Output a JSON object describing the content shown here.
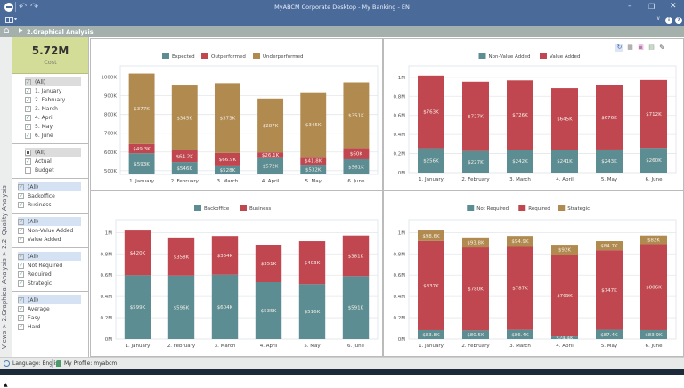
{
  "window": {
    "title": "MyABCM Corporate Desktop - My Banking - EN",
    "icons": [
      "app-logo-icon",
      "undo-icon",
      "redo-icon",
      "minimize-icon",
      "restore-icon",
      "close-icon",
      "layout-icon",
      "chevron-down-icon",
      "info-icon",
      "help-icon"
    ]
  },
  "breadcrumb": {
    "home_icon": "home-icon",
    "current": "2.Graphical Analysis"
  },
  "side_nav": {
    "path": "Views > 2.Graphical Analysis > 2.2. Quality Analysis"
  },
  "kpi": {
    "value": "5.72M",
    "label": "Cost"
  },
  "filters": [
    {
      "items": [
        {
          "label": "(All)",
          "state": "checked",
          "all": true
        },
        {
          "label": "1. January",
          "state": "checked"
        },
        {
          "label": "2. February",
          "state": "checked"
        },
        {
          "label": "3. March",
          "state": "checked"
        },
        {
          "label": "4. April",
          "state": "checked"
        },
        {
          "label": "5. May",
          "state": "checked"
        },
        {
          "label": "6. June",
          "state": "checked"
        }
      ]
    },
    {
      "items": [
        {
          "label": "(All)",
          "state": "partial",
          "all": true
        },
        {
          "label": "Actual",
          "state": "checked"
        },
        {
          "label": "Budget",
          "state": "unchecked"
        }
      ]
    },
    {
      "items": [
        {
          "label": "(All)",
          "state": "checked",
          "all": true
        },
        {
          "label": "Backoffice",
          "state": "checked"
        },
        {
          "label": "Business",
          "state": "checked"
        }
      ]
    },
    {
      "items": [
        {
          "label": "(All)",
          "state": "checked",
          "all": true
        },
        {
          "label": "Non-Value Added",
          "state": "checked"
        },
        {
          "label": "Value Added",
          "state": "checked"
        }
      ]
    },
    {
      "items": [
        {
          "label": "(All)",
          "state": "checked",
          "all": true
        },
        {
          "label": "Not Required",
          "state": "checked"
        },
        {
          "label": "Required",
          "state": "checked"
        },
        {
          "label": "Strategic",
          "state": "checked"
        }
      ]
    },
    {
      "items": [
        {
          "label": "(All)",
          "state": "checked",
          "all": true
        },
        {
          "label": "Average",
          "state": "checked"
        },
        {
          "label": "Easy",
          "state": "checked"
        },
        {
          "label": "Hard",
          "state": "checked"
        }
      ]
    }
  ],
  "chart_toolbar": {
    "icons": [
      "refresh-icon",
      "grid-icon",
      "save-icon",
      "export-icon",
      "edit-icon"
    ]
  },
  "status": {
    "language": "Language: English",
    "profile": "My Profile: myabcm"
  },
  "colors": {
    "teal": "#5b8d93",
    "red": "#c0464f",
    "gold": "#b08a4f"
  },
  "chart_data": [
    {
      "type": "bar",
      "stacked": true,
      "title": "",
      "categories": [
        "1. January",
        "2. February",
        "3. March",
        "4. April",
        "5. May",
        "6. June"
      ],
      "series": [
        {
          "name": "Expected",
          "color": "#5b8d93",
          "values": [
            593,
            546,
            528,
            572,
            532,
            561
          ],
          "labels": [
            "$593K",
            "$546K",
            "$528K",
            "$572K",
            "$532K",
            "$561K"
          ]
        },
        {
          "name": "Outperformed",
          "color": "#c0464f",
          "values": [
            49.3,
            64.2,
            66.9,
            26.1,
            41.8,
            60
          ],
          "labels": [
            "$49.3K",
            "$64.2K",
            "$66.9K",
            "$26.1K",
            "$41.8K",
            "$60K"
          ]
        },
        {
          "name": "Underperformed",
          "color": "#b08a4f",
          "values": [
            377,
            345,
            373,
            287,
            345,
            351
          ],
          "labels": [
            "$377K",
            "$345K",
            "$373K",
            "$287K",
            "$345K",
            "$351K"
          ]
        }
      ],
      "ylim": [
        480,
        1060
      ],
      "yticks": [
        500,
        600,
        700,
        800,
        900,
        1000
      ],
      "ytick_labels": [
        "500K",
        "600K",
        "700K",
        "800K",
        "900K",
        "1000K"
      ],
      "legend": "top-center",
      "grid": true
    },
    {
      "type": "bar",
      "stacked": true,
      "categories": [
        "1. January",
        "2. February",
        "3. March",
        "4. April",
        "5. May",
        "6. June"
      ],
      "series": [
        {
          "name": "Non-Value Added",
          "color": "#5b8d93",
          "values": [
            256,
            227,
            242,
            241,
            243,
            260
          ],
          "labels": [
            "$256K",
            "$227K",
            "$242K",
            "$241K",
            "$243K",
            "$260K"
          ]
        },
        {
          "name": "Value Added",
          "color": "#c0464f",
          "values": [
            763,
            727,
            726,
            645,
            676,
            712
          ],
          "labels": [
            "$763K",
            "$727K",
            "$726K",
            "$645K",
            "$676K",
            "$712K"
          ]
        }
      ],
      "ylim": [
        0,
        1120
      ],
      "yticks": [
        0,
        200,
        400,
        600,
        800,
        1000
      ],
      "ytick_labels": [
        "0M",
        "0.2M",
        "0.4M",
        "0.6M",
        "0.8M",
        "1M"
      ],
      "legend": "top-center",
      "grid": true
    },
    {
      "type": "bar",
      "stacked": true,
      "categories": [
        "1. January",
        "2. February",
        "3. March",
        "4. April",
        "5. May",
        "6. June"
      ],
      "series": [
        {
          "name": "Backoffice",
          "color": "#5b8d93",
          "values": [
            599,
            596,
            604,
            535,
            516,
            591
          ],
          "labels": [
            "$599K",
            "$596K",
            "$604K",
            "$535K",
            "$516K",
            "$591K"
          ]
        },
        {
          "name": "Business",
          "color": "#c0464f",
          "values": [
            420,
            358,
            364,
            351,
            403,
            381
          ],
          "labels": [
            "$420K",
            "$358K",
            "$364K",
            "$351K",
            "$403K",
            "$381K"
          ]
        }
      ],
      "ylim": [
        0,
        1120
      ],
      "yticks": [
        0,
        200,
        400,
        600,
        800,
        1000
      ],
      "ytick_labels": [
        "0M",
        "0.2M",
        "0.4M",
        "0.6M",
        "0.8M",
        "1M"
      ],
      "legend": "top-center",
      "grid": true
    },
    {
      "type": "bar",
      "stacked": true,
      "categories": [
        "1. January",
        "2. February",
        "3. March",
        "4. April",
        "5. May",
        "6. June"
      ],
      "series": [
        {
          "name": "Not Required",
          "color": "#5b8d93",
          "values": [
            83.8,
            80.5,
            86.4,
            24.4,
            87.4,
            83.9
          ],
          "labels": [
            "$83.8K",
            "$80.5K",
            "$86.4K",
            "$24.4K",
            "$87.4K",
            "$83.9K"
          ]
        },
        {
          "name": "Required",
          "color": "#c0464f",
          "values": [
            837,
            780,
            787,
            769,
            747,
            806
          ],
          "labels": [
            "$837K",
            "$780K",
            "$787K",
            "$769K",
            "$747K",
            "$806K"
          ]
        },
        {
          "name": "Strategic",
          "color": "#b08a4f",
          "values": [
            98.6,
            93.8,
            94.9,
            92,
            84.7,
            82
          ],
          "labels": [
            "$98.6K",
            "$93.8K",
            "$94.9K",
            "$92K",
            "$84.7K",
            "$82K"
          ]
        }
      ],
      "ylim": [
        0,
        1120
      ],
      "yticks": [
        0,
        200,
        400,
        600,
        800,
        1000
      ],
      "ytick_labels": [
        "0M",
        "0.2M",
        "0.4M",
        "0.6M",
        "0.8M",
        "1M"
      ],
      "legend": "top-center",
      "grid": true
    }
  ]
}
